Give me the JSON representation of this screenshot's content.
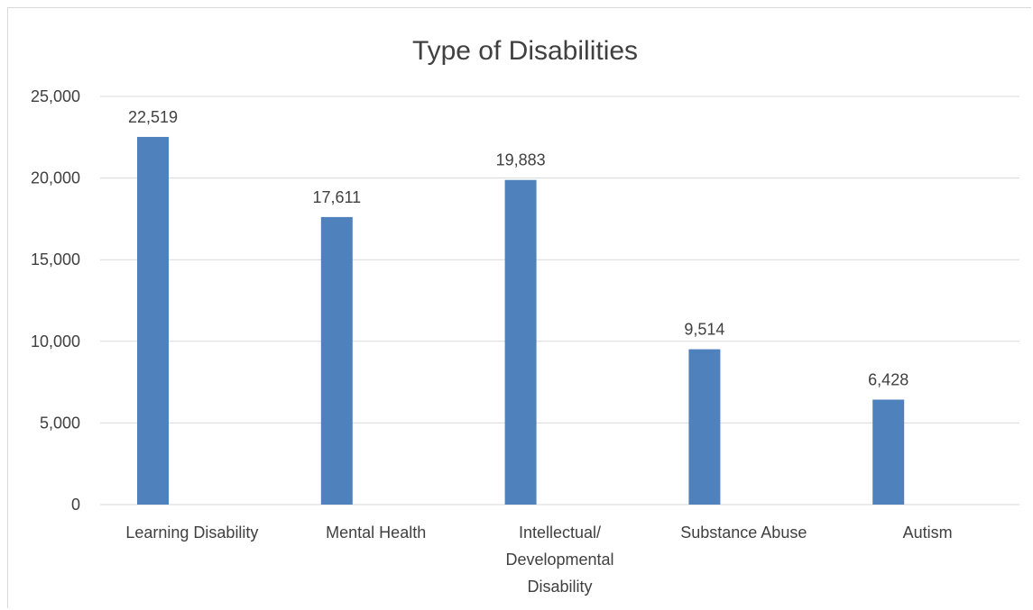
{
  "chart_data": {
    "type": "bar",
    "title": "Type of Disabilities",
    "categories": [
      [
        "Learning  Disability"
      ],
      [
        "Mental Health"
      ],
      [
        "Intellectual/",
        "Developmental",
        "Disability"
      ],
      [
        "Substance Abuse"
      ],
      [
        "Autism"
      ]
    ],
    "values": [
      22519,
      17611,
      19883,
      9514,
      6428
    ],
    "value_labels": [
      "22,519",
      "17,611",
      "19,883",
      "9,514",
      "6,428"
    ],
    "y_ticks": [
      0,
      5000,
      10000,
      15000,
      20000,
      25000
    ],
    "y_tick_labels": [
      "0",
      "5,000",
      "10,000",
      "15,000",
      "20,000",
      "25,000"
    ],
    "ylim": [
      0,
      25000
    ],
    "grid": true,
    "bar_color": "#4f81bd"
  }
}
